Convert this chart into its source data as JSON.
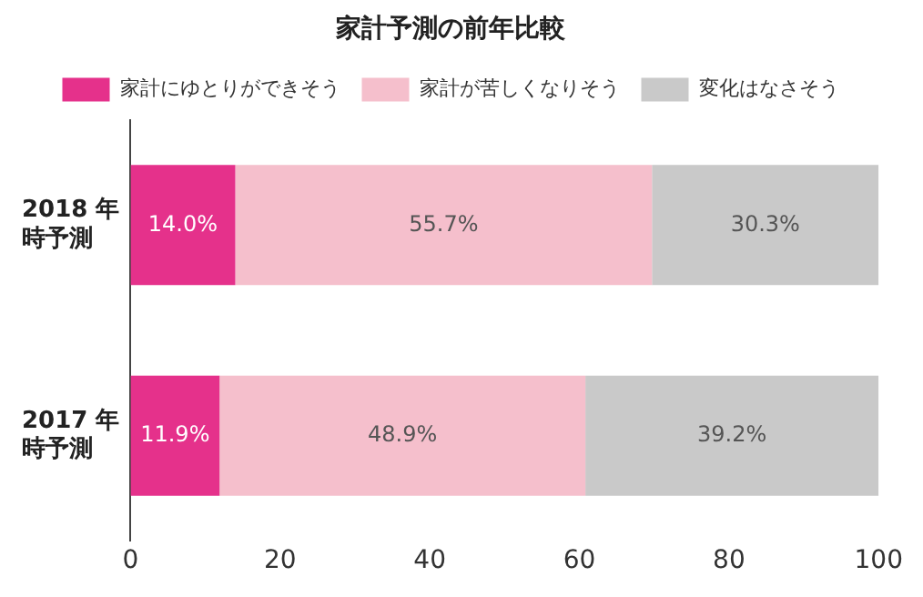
{
  "chart_data": {
    "type": "bar",
    "orientation": "horizontal",
    "stacked": true,
    "title": "家計予測の前年比較",
    "categories": [
      "2018 年時予測",
      "2017 年時予測"
    ],
    "series": [
      {
        "name": "家計にゆとりができそう",
        "color": "#e5318b",
        "values": [
          14.0,
          11.9
        ],
        "value_labels": [
          "14.0%",
          "11.9%"
        ]
      },
      {
        "name": "家計が苦しくなりそう",
        "color": "#f5bfcc",
        "values": [
          55.7,
          48.9
        ],
        "value_labels": [
          "55.7%",
          "48.9%"
        ]
      },
      {
        "name": "変化はなさそう",
        "color": "#c9c9c9",
        "values": [
          30.3,
          39.2
        ],
        "value_labels": [
          "30.3%",
          "39.2%"
        ]
      }
    ],
    "xlim": [
      0,
      100
    ],
    "xticks": [
      0,
      20,
      40,
      60,
      80,
      100
    ],
    "grid": false,
    "legend": "top"
  }
}
